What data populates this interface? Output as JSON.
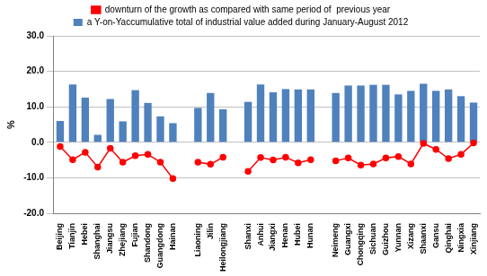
{
  "chart_data": {
    "type": "bar",
    "y_label": "%",
    "categories": [
      "Beijing",
      "Tianjin",
      "Hebei",
      "Shanghai",
      "Jiangsu",
      "Zhejiang",
      "Fujian",
      "Shandong",
      "Guangdong",
      "Hainan",
      null,
      "Liaoning",
      "Jilin",
      "Heilongjiang",
      null,
      "Shanxi",
      "Anhui",
      "Jiangxi",
      "Henan",
      "Hubei",
      "Hunan",
      null,
      "Neimeng",
      "Guangxi",
      "Chongqing",
      "Sichuan",
      "Guizhou",
      "Yunnan",
      "Xizang",
      "Shaanxi",
      "Gansu",
      "Qinghai",
      "Ningxia",
      "Xinjiang"
    ],
    "series": [
      {
        "name": "a Y-on-Yaccumulative total of industrial value added during January-August 2012",
        "type": "bar",
        "color": "#4f81bd",
        "values": [
          6.0,
          16.3,
          12.6,
          2.1,
          12.2,
          5.9,
          14.7,
          11.1,
          7.3,
          5.4,
          null,
          9.7,
          13.9,
          9.3,
          null,
          11.4,
          16.3,
          14.1,
          15.0,
          14.9,
          14.9,
          null,
          13.9,
          16.0,
          16.0,
          16.2,
          16.2,
          13.5,
          14.5,
          16.5,
          14.5,
          14.9,
          13.0,
          11.2
        ]
      },
      {
        "name": "downturn of the growth as compared with same period of  previous year",
        "type": "line",
        "color": "#ff0000",
        "marker": "circle",
        "values": [
          -1.2,
          -4.9,
          -2.8,
          -7.0,
          -1.7,
          -5.6,
          -3.8,
          -3.4,
          -5.6,
          -10.2,
          null,
          -5.6,
          -6.2,
          -4.2,
          null,
          -8.2,
          -4.3,
          -5.0,
          -4.2,
          -5.8,
          -4.9,
          null,
          -5.2,
          -4.4,
          -6.4,
          -6.1,
          -4.4,
          -4.0,
          -6.1,
          -0.3,
          -2.0,
          -4.6,
          -3.4,
          -0.2
        ]
      }
    ],
    "ylim": [
      -20,
      30
    ],
    "yticks": [
      {
        "value": -20,
        "label": "-20.0"
      },
      {
        "value": -10,
        "label": "-10.0"
      },
      {
        "value": 0,
        "label": "0.0"
      },
      {
        "value": 10,
        "label": "10.0"
      },
      {
        "value": 20,
        "label": "20.0"
      },
      {
        "value": 30,
        "label": "30.0"
      }
    ],
    "grid": true,
    "legend": "top"
  }
}
